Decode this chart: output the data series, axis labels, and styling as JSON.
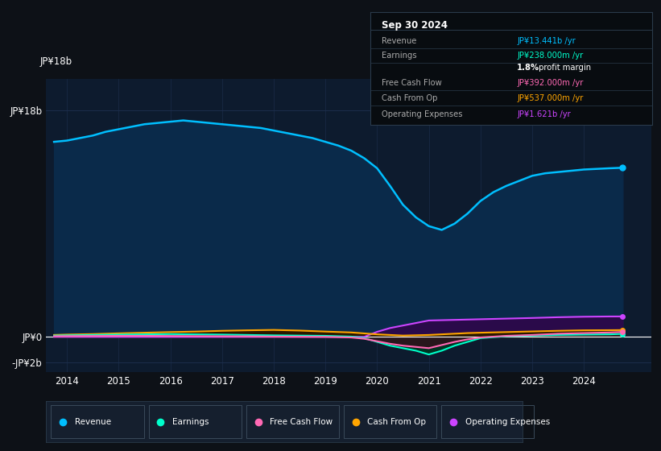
{
  "bg_color": "#0d1117",
  "plot_bg_color": "#0d1b2e",
  "legend_bg": "#151f2e",
  "yticks_labels": [
    "JP¥18b",
    "JP¥0",
    "-JP¥2b"
  ],
  "yticks_values": [
    18000000000,
    0,
    -2000000000
  ],
  "xticks": [
    2014,
    2015,
    2016,
    2017,
    2018,
    2019,
    2020,
    2021,
    2022,
    2023,
    2024
  ],
  "ylim": [
    -2800000000,
    20500000000
  ],
  "xlim": [
    2013.6,
    2025.3
  ],
  "revenue_x": [
    2013.75,
    2014.0,
    2014.25,
    2014.5,
    2014.75,
    2015.0,
    2015.25,
    2015.5,
    2015.75,
    2016.0,
    2016.25,
    2016.5,
    2016.75,
    2017.0,
    2017.25,
    2017.5,
    2017.75,
    2018.0,
    2018.25,
    2018.5,
    2018.75,
    2019.0,
    2019.25,
    2019.5,
    2019.75,
    2020.0,
    2020.25,
    2020.5,
    2020.75,
    2021.0,
    2021.25,
    2021.5,
    2021.75,
    2022.0,
    2022.25,
    2022.5,
    2022.75,
    2023.0,
    2023.25,
    2023.5,
    2023.75,
    2024.0,
    2024.25,
    2024.5,
    2024.75
  ],
  "revenue_y": [
    15500000000,
    15600000000,
    15800000000,
    16000000000,
    16300000000,
    16500000000,
    16700000000,
    16900000000,
    17000000000,
    17100000000,
    17200000000,
    17100000000,
    17000000000,
    16900000000,
    16800000000,
    16700000000,
    16600000000,
    16400000000,
    16200000000,
    16000000000,
    15800000000,
    15500000000,
    15200000000,
    14800000000,
    14200000000,
    13400000000,
    12000000000,
    10500000000,
    9500000000,
    8800000000,
    8500000000,
    9000000000,
    9800000000,
    10800000000,
    11500000000,
    12000000000,
    12400000000,
    12800000000,
    13000000000,
    13100000000,
    13200000000,
    13300000000,
    13350000000,
    13400000000,
    13441000000
  ],
  "revenue_color": "#00bfff",
  "revenue_fill": "#0a2a4a",
  "earnings_x": [
    2013.75,
    2014.0,
    2014.5,
    2015.0,
    2015.5,
    2016.0,
    2016.5,
    2017.0,
    2017.5,
    2018.0,
    2018.5,
    2019.0,
    2019.25,
    2019.5,
    2019.75,
    2020.0,
    2020.25,
    2020.5,
    2020.75,
    2021.0,
    2021.25,
    2021.5,
    2021.75,
    2022.0,
    2022.5,
    2023.0,
    2023.5,
    2024.0,
    2024.5,
    2024.75
  ],
  "earnings_y": [
    100000000,
    120000000,
    150000000,
    180000000,
    200000000,
    220000000,
    200000000,
    180000000,
    150000000,
    120000000,
    100000000,
    80000000,
    50000000,
    20000000,
    -100000000,
    -400000000,
    -700000000,
    -900000000,
    -1100000000,
    -1400000000,
    -1100000000,
    -700000000,
    -400000000,
    -100000000,
    50000000,
    100000000,
    150000000,
    180000000,
    200000000,
    238000000
  ],
  "earnings_color": "#00ffcc",
  "free_cash_flow_x": [
    2013.75,
    2014.0,
    2014.5,
    2015.0,
    2015.5,
    2016.0,
    2016.5,
    2017.0,
    2017.5,
    2018.0,
    2018.5,
    2019.0,
    2019.5,
    2019.75,
    2020.0,
    2020.25,
    2020.5,
    2020.75,
    2021.0,
    2021.25,
    2021.5,
    2021.75,
    2022.0,
    2022.5,
    2023.0,
    2023.5,
    2024.0,
    2024.5,
    2024.75
  ],
  "free_cash_flow_y": [
    50000000,
    60000000,
    70000000,
    80000000,
    80000000,
    70000000,
    60000000,
    50000000,
    40000000,
    20000000,
    10000000,
    0,
    -50000000,
    -150000000,
    -350000000,
    -550000000,
    -700000000,
    -800000000,
    -900000000,
    -650000000,
    -400000000,
    -200000000,
    -50000000,
    80000000,
    150000000,
    250000000,
    300000000,
    350000000,
    392000000
  ],
  "free_cash_flow_color": "#ff69b4",
  "cash_from_op_x": [
    2013.75,
    2014.0,
    2014.5,
    2015.0,
    2015.5,
    2016.0,
    2016.5,
    2017.0,
    2017.5,
    2018.0,
    2018.5,
    2019.0,
    2019.5,
    2020.0,
    2020.5,
    2021.0,
    2021.25,
    2021.5,
    2021.75,
    2022.0,
    2022.5,
    2023.0,
    2023.5,
    2024.0,
    2024.5,
    2024.75
  ],
  "cash_from_op_y": [
    150000000,
    180000000,
    220000000,
    280000000,
    330000000,
    380000000,
    420000000,
    480000000,
    520000000,
    550000000,
    500000000,
    420000000,
    350000000,
    200000000,
    100000000,
    150000000,
    200000000,
    250000000,
    300000000,
    330000000,
    380000000,
    430000000,
    480000000,
    520000000,
    530000000,
    537000000
  ],
  "cash_from_op_color": "#ffa500",
  "operating_expenses_x": [
    2013.75,
    2014.0,
    2014.5,
    2015.0,
    2015.5,
    2016.0,
    2016.5,
    2017.0,
    2017.5,
    2018.0,
    2018.5,
    2019.0,
    2019.5,
    2019.75,
    2020.0,
    2020.25,
    2020.5,
    2020.75,
    2021.0,
    2021.5,
    2022.0,
    2022.5,
    2023.0,
    2023.25,
    2023.5,
    2024.0,
    2024.5,
    2024.75
  ],
  "operating_expenses_y": [
    0,
    0,
    0,
    0,
    0,
    0,
    0,
    0,
    0,
    0,
    0,
    0,
    0,
    0,
    400000000,
    700000000,
    900000000,
    1100000000,
    1300000000,
    1350000000,
    1400000000,
    1450000000,
    1500000000,
    1530000000,
    1560000000,
    1600000000,
    1620000000,
    1621000000
  ],
  "operating_expenses_color": "#cc44ff",
  "operating_expenses_fill": "#2a0a4a",
  "grid_color": "#1e3050",
  "zero_line_color": "#ffffff",
  "legend": [
    {
      "label": "Revenue",
      "color": "#00bfff"
    },
    {
      "label": "Earnings",
      "color": "#00ffcc"
    },
    {
      "label": "Free Cash Flow",
      "color": "#ff69b4"
    },
    {
      "label": "Cash From Op",
      "color": "#ffa500"
    },
    {
      "label": "Operating Expenses",
      "color": "#cc44ff"
    }
  ],
  "infobox": {
    "date": "Sep 30 2024",
    "rows": [
      {
        "label": "Revenue",
        "value": "JP¥13.441b /yr",
        "value_color": "#00bfff"
      },
      {
        "label": "Earnings",
        "value": "JP¥238.000m /yr",
        "value_color": "#00ffcc"
      },
      {
        "label": "",
        "value": "1.8% profit margin",
        "value_color": "#ffffff",
        "bold_part": "1.8%"
      },
      {
        "label": "Free Cash Flow",
        "value": "JP¥392.000m /yr",
        "value_color": "#ff69b4"
      },
      {
        "label": "Cash From Op",
        "value": "JP¥537.000m /yr",
        "value_color": "#ffa500"
      },
      {
        "label": "Operating Expenses",
        "value": "JP¥1.621b /yr",
        "value_color": "#cc44ff"
      }
    ]
  }
}
